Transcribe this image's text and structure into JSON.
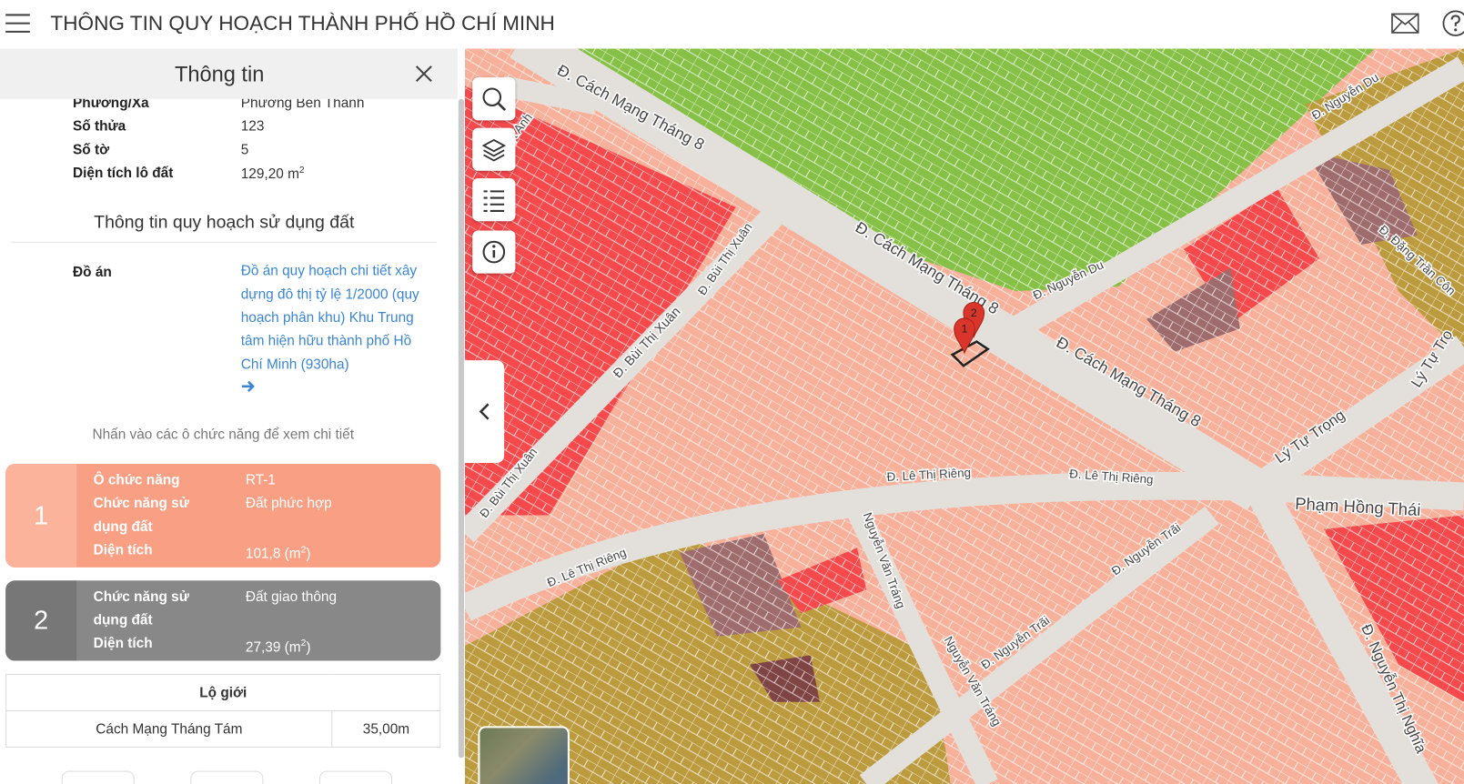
{
  "header": {
    "title": "THÔNG TIN QUY HOẠCH THÀNH PHỐ HỒ CHÍ MINH"
  },
  "panel": {
    "title": "Thông tin",
    "fields": [
      {
        "label": "Phường/Xã",
        "value": "Phường Bến Thành"
      },
      {
        "label": "Số thửa",
        "value": "123"
      },
      {
        "label": "Số tờ",
        "value": "5"
      },
      {
        "label": "Diện tích lô đất",
        "value": "129,20 m",
        "sup": "2"
      }
    ],
    "section_title": "Thông tin quy hoạch sử dụng đất",
    "project": {
      "label": "Đồ án",
      "value": "Đồ án quy hoạch chi tiết xây dựng đô thị tỷ lệ 1/2000 (quy hoạch phân khu) Khu Trung tâm hiện hữu thành phố Hồ Chí Minh (930ha)"
    },
    "hint": "Nhấn vào các ô chức năng để xem chi tiết",
    "cells": [
      {
        "number": "1",
        "rows": [
          {
            "label": "Ô chức năng",
            "value": "RT-1"
          },
          {
            "label": "Chức năng sử dụng đất",
            "value": "Đất phức hợp"
          },
          {
            "label": "Diện tích",
            "value": "101,8 (m",
            "sup": "2",
            "suffix": ")"
          }
        ]
      },
      {
        "number": "2",
        "rows": [
          {
            "label": "Chức năng sử dụng đất",
            "value": "Đất giao thông"
          },
          {
            "label": "Diện tích",
            "value": "27,39 (m",
            "sup": "2",
            "suffix": ")"
          }
        ]
      }
    ],
    "road_width": {
      "title": "Lộ giới",
      "rows": [
        [
          "Cách Mạng Tháng Tám",
          "35,00m"
        ]
      ]
    }
  },
  "map": {
    "labels": [
      "Đ. Cách Mạng Tháng 8",
      "Đ. Cách Mạng Tháng 8",
      "Đ. Cách Mạng Tháng 8",
      "Đ. Nguyễn Du",
      "Đ. Nguyễn Du",
      "Đ. Bùi Thị Xuân",
      "Đ. Bùi Thị Xuân",
      "Đ. Bùi Thị Xuân",
      "Nguyệt Anh",
      "Đ. Lê Thị Riêng",
      "Đ. Lê Thị Riêng",
      "Đ. Lê Thị Riêng",
      "Nguyễn Văn Tráng",
      "Nguyễn Văn Tráng",
      "Đ. Nguyễn Trãi",
      "Đ. Nguyễn Trãi",
      "Lý Tự Trọng",
      "Lý Tự Trọ",
      "Phạm Hồng Thái",
      "Đ. Nguyễn Thị Nghĩa",
      "Đ. Đặng Trần Côn"
    ],
    "markers": [
      "1",
      "2"
    ]
  }
}
